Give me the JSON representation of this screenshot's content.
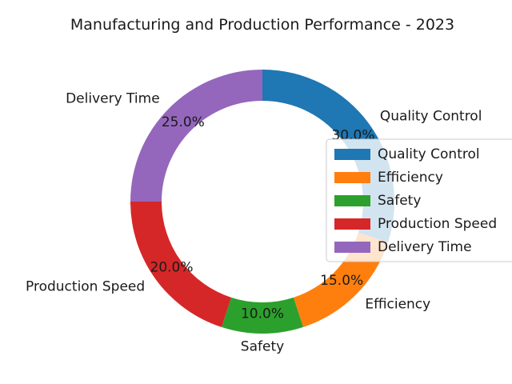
{
  "chart_data": {
    "type": "pie",
    "donut": true,
    "title": "Manufacturing and Production Performance - 2023",
    "categories": [
      "Quality Control",
      "Efficiency",
      "Safety",
      "Production Speed",
      "Delivery Time"
    ],
    "values": [
      30.0,
      15.0,
      10.0,
      20.0,
      25.0
    ],
    "value_labels": [
      "30.0%",
      "15.0%",
      "10.0%",
      "20.0%",
      "25.0%"
    ],
    "colors": [
      "#1f77b4",
      "#ff7f0e",
      "#2ca02c",
      "#d62728",
      "#9467bd"
    ],
    "legend": {
      "position": "right",
      "entries": [
        "Quality Control",
        "Efficiency",
        "Safety",
        "Production Speed",
        "Delivery Time"
      ]
    }
  }
}
